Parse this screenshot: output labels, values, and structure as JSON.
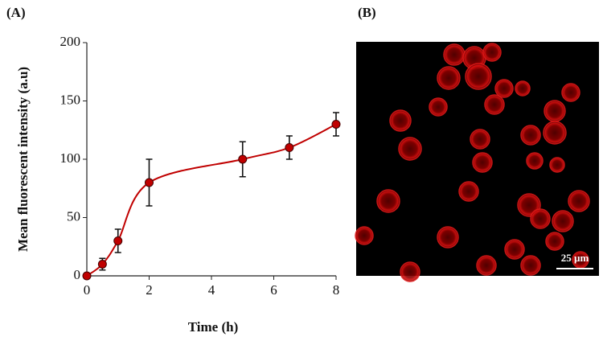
{
  "chart_data": {
    "type": "line",
    "panel_label": "(A)",
    "x_label": "Time (h)",
    "y_label": "Mean fluorescent intensity (a.u)",
    "x": [
      0,
      0.5,
      1,
      2,
      5,
      6.5,
      8
    ],
    "values": [
      0,
      10,
      30,
      80,
      100,
      110,
      130
    ],
    "errors": [
      0,
      5,
      10,
      20,
      15,
      10,
      10
    ],
    "color": "#c00000",
    "xlim": [
      0,
      8
    ],
    "xticks": [
      0,
      2,
      4,
      6,
      8
    ],
    "ylim": [
      0,
      200
    ],
    "yticks": [
      0,
      50,
      100,
      150,
      200
    ]
  },
  "image_panel": {
    "label": "(B)",
    "scale_bar": "25 µm"
  }
}
